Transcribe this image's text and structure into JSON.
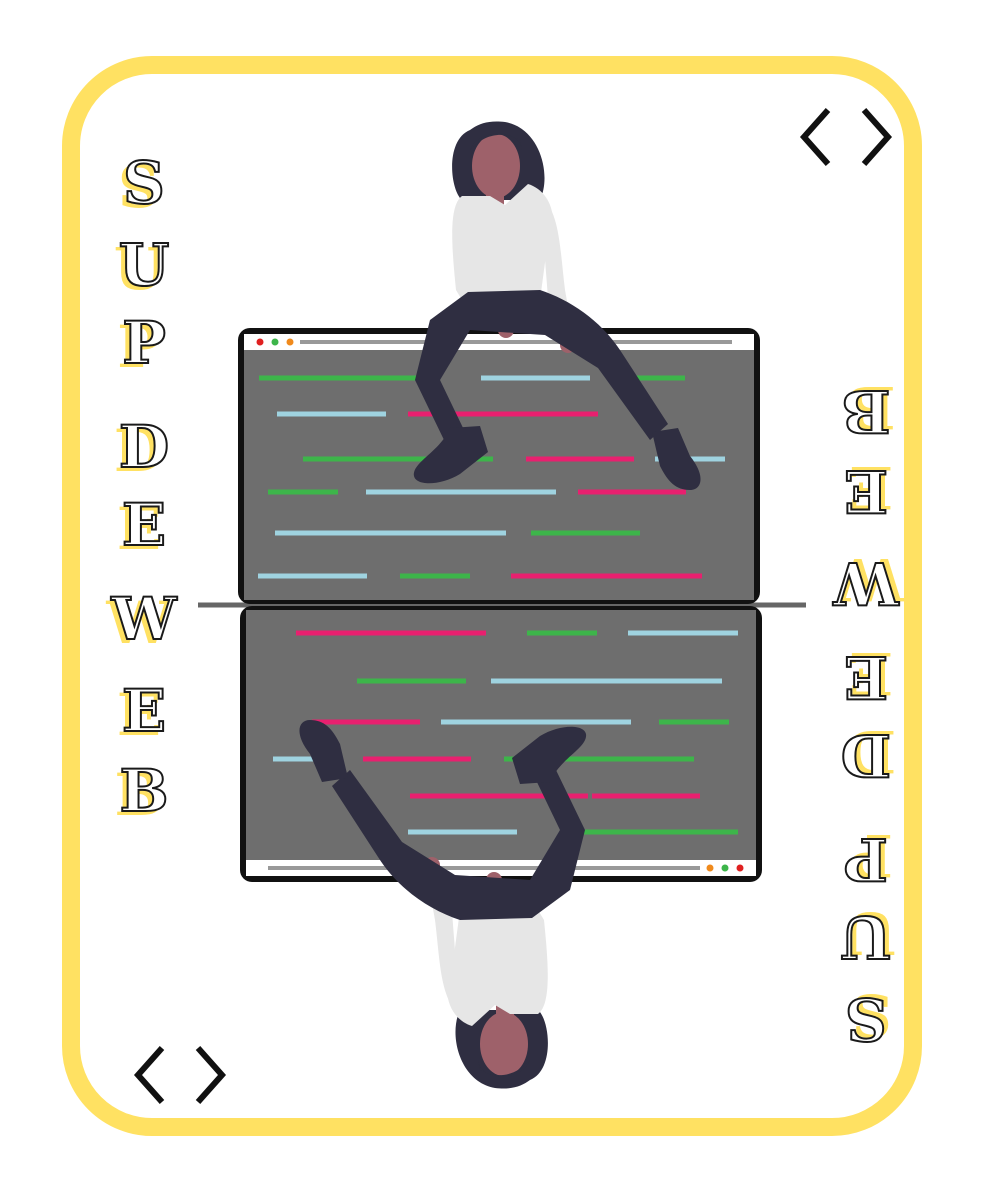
{
  "card": {
    "border_color": "#ffe162",
    "top_corner_icon": "code-brackets-icon",
    "bottom_corner_icon": "code-brackets-icon"
  },
  "left_letters": [
    "S",
    "U",
    "P",
    "D",
    "E",
    "W",
    "E",
    "B"
  ],
  "right_letters": [
    "S",
    "U",
    "P",
    "D",
    "E",
    "W",
    "E",
    "B"
  ],
  "colors": {
    "screen": "#6e6e6e",
    "green": "#3db54a",
    "blue": "#9fd3e0",
    "pink": "#e8206f",
    "skin": "#9e616a",
    "hair": "#2f2e41",
    "shirt": "#e6e6e6",
    "pants": "#2f2e41"
  }
}
